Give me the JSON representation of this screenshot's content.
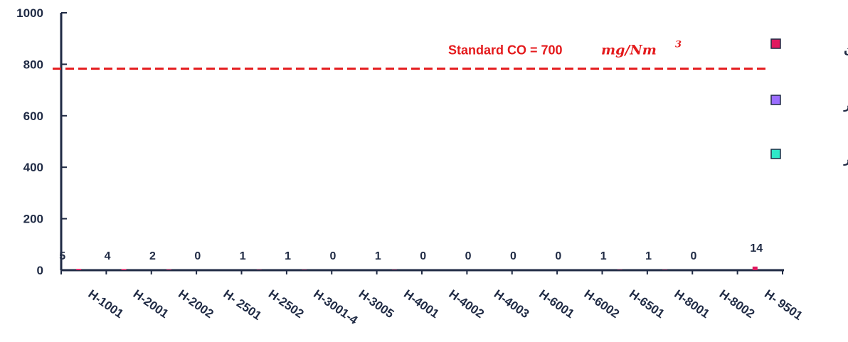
{
  "chart_data": {
    "type": "bar",
    "ylim": [
      0,
      1000
    ],
    "yticks": [
      "0",
      "200",
      "400",
      "600",
      "800",
      "1000"
    ],
    "categories": [
      "H-1001",
      "H-2001",
      "H-2002",
      "H- 2501",
      "H-2502",
      "H-3001-4",
      "H-3005",
      "H-4001",
      "H-4002",
      "H-4003",
      "H-6001",
      "H-6002",
      "H-6501",
      "H-8001",
      "H-8002",
      "H- 9501"
    ],
    "data_labels": [
      "5",
      "4",
      "2",
      "0",
      "1",
      "1",
      "0",
      "1",
      "0",
      "0",
      "0",
      "0",
      "1",
      "1",
      "0",
      "14"
    ],
    "series": [
      {
        "name": "فروردین",
        "color": "#e0195f",
        "values": [
          5,
          4,
          2,
          0,
          1,
          1,
          0,
          1,
          0,
          0,
          0,
          0,
          1,
          1,
          0,
          14
        ]
      },
      {
        "name": "تیر",
        "color": "#9b6dff",
        "values": [
          0,
          0,
          0,
          0,
          0,
          0,
          0,
          0,
          0,
          0,
          0,
          0,
          0,
          0,
          0,
          0
        ]
      },
      {
        "name": "شهریور",
        "color": "#2ee8c8",
        "values": [
          0,
          0,
          0,
          0,
          0,
          0,
          0,
          0,
          0,
          0,
          0,
          0,
          0,
          0,
          0,
          0
        ]
      }
    ],
    "reference_line": {
      "value": 700,
      "color": "#e41a1c",
      "label": "Standard  CO = 700",
      "unit": "mg/Nm",
      "unit_sup": "3"
    },
    "legend_position": "right",
    "grid": false
  }
}
